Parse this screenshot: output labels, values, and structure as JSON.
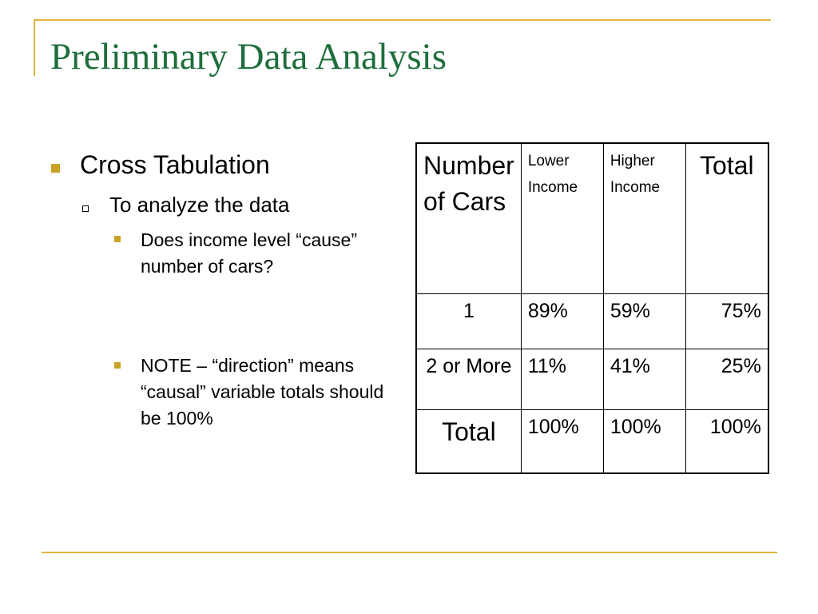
{
  "slide": {
    "title": "Preliminary Data Analysis",
    "colors": {
      "title": "#1e6e3c",
      "accent": "#e2b43c",
      "bullet": "#c9a227"
    }
  },
  "bullets": {
    "level1": "Cross Tabulation",
    "level2": "To analyze the data",
    "level3a": "Does income level “cause” number of cars?",
    "level3b": "NOTE – “direction” means “causal” variable totals should be 100%"
  },
  "table": {
    "header": [
      "Number of Cars",
      "Lower Income",
      "Higher Income",
      "Total"
    ],
    "rows": [
      [
        "1",
        "89%",
        "59%",
        "75%"
      ],
      [
        "2 or More",
        "11%",
        "41%",
        "25%"
      ],
      [
        "Total",
        "100%",
        "100%",
        "100%"
      ]
    ]
  }
}
